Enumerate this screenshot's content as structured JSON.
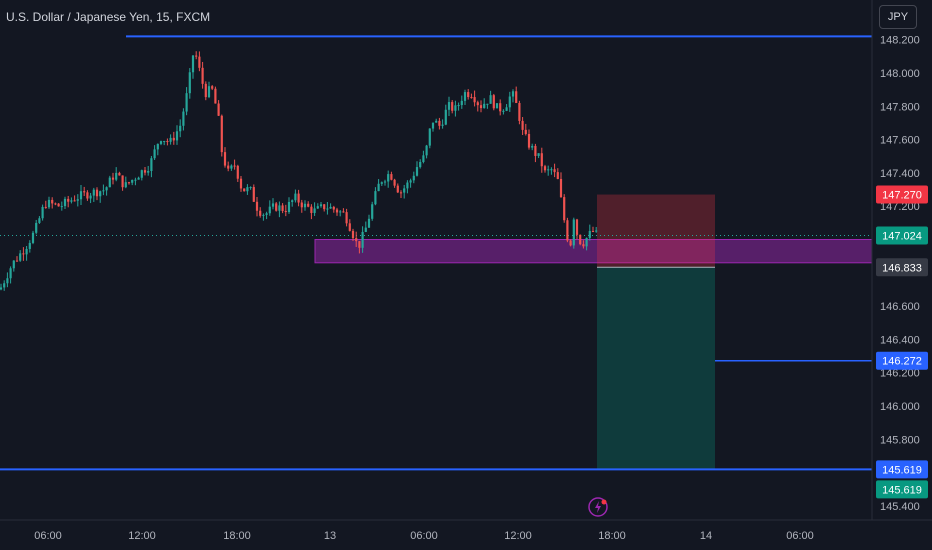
{
  "header": {
    "symbol_title": "U.S. Dollar / Japanese Yen, 15, FXCM",
    "currency_button": "JPY"
  },
  "colors": {
    "background": "#131722",
    "up": "#26a69a",
    "down": "#ef5350",
    "blue_line": "#2962ff",
    "zone": "#9c27b0",
    "stop_zone": "#f23645",
    "target_zone": "#089981"
  },
  "chart_data": {
    "type": "candlestick",
    "ylim": [
      145.3,
      148.3
    ],
    "y_ticks": [
      "148.200",
      "148.000",
      "147.800",
      "147.600",
      "147.400",
      "147.200",
      "146.600",
      "146.400",
      "146.200",
      "146.000",
      "145.800",
      "145.400"
    ],
    "x_ticks": [
      "06:00",
      "12:00",
      "18:00",
      "13",
      "06:00",
      "12:00",
      "18:00",
      "14",
      "06:00"
    ],
    "price_tags": [
      {
        "label": "147.270",
        "value": 147.27,
        "kind": "stop"
      },
      {
        "label": "147.024",
        "value": 147.024,
        "kind": "last"
      },
      {
        "label": "146.833",
        "value": 146.833,
        "kind": "entry"
      },
      {
        "label": "146.272",
        "value": 146.272,
        "kind": "level"
      },
      {
        "label": "145.619",
        "value": 145.619,
        "kind": "level"
      },
      {
        "label": "145.619",
        "value": 145.619,
        "kind": "target"
      }
    ],
    "horizontal_levels": [
      148.22,
      146.272,
      145.619
    ],
    "zone": {
      "top": 147.0,
      "bottom": 146.86
    },
    "position": {
      "entry": 146.833,
      "stop": 147.27,
      "target": 145.619
    },
    "anchors": [
      [
        0,
        146.7
      ],
      [
        12,
        146.85
      ],
      [
        25,
        146.95
      ],
      [
        35,
        147.05
      ],
      [
        45,
        147.22
      ],
      [
        60,
        147.2
      ],
      [
        75,
        147.25
      ],
      [
        90,
        147.28
      ],
      [
        105,
        147.3
      ],
      [
        115,
        147.4
      ],
      [
        125,
        147.32
      ],
      [
        140,
        147.4
      ],
      [
        150,
        147.45
      ],
      [
        160,
        147.62
      ],
      [
        170,
        147.58
      ],
      [
        180,
        147.68
      ],
      [
        188,
        147.9
      ],
      [
        194,
        148.15
      ],
      [
        198,
        148.05
      ],
      [
        205,
        147.88
      ],
      [
        212,
        147.9
      ],
      [
        218,
        147.75
      ],
      [
        222,
        147.52
      ],
      [
        228,
        147.4
      ],
      [
        235,
        147.45
      ],
      [
        242,
        147.3
      ],
      [
        250,
        147.3
      ],
      [
        258,
        147.18
      ],
      [
        265,
        147.15
      ],
      [
        275,
        147.2
      ],
      [
        285,
        147.18
      ],
      [
        295,
        147.25
      ],
      [
        305,
        147.2
      ],
      [
        315,
        147.17
      ],
      [
        325,
        147.2
      ],
      [
        335,
        147.18
      ],
      [
        345,
        147.15
      ],
      [
        352,
        147.05
      ],
      [
        358,
        146.95
      ],
      [
        365,
        147.05
      ],
      [
        372,
        147.2
      ],
      [
        380,
        147.35
      ],
      [
        390,
        147.4
      ],
      [
        400,
        147.28
      ],
      [
        410,
        147.35
      ],
      [
        418,
        147.45
      ],
      [
        425,
        147.5
      ],
      [
        432,
        147.72
      ],
      [
        440,
        147.68
      ],
      [
        448,
        147.8
      ],
      [
        456,
        147.78
      ],
      [
        464,
        147.88
      ],
      [
        472,
        147.88
      ],
      [
        480,
        147.8
      ],
      [
        490,
        147.85
      ],
      [
        498,
        147.78
      ],
      [
        505,
        147.8
      ],
      [
        512,
        147.88
      ],
      [
        518,
        147.78
      ],
      [
        522,
        147.65
      ],
      [
        528,
        147.58
      ],
      [
        535,
        147.52
      ],
      [
        540,
        147.48
      ],
      [
        545,
        147.4
      ],
      [
        552,
        147.42
      ],
      [
        558,
        147.35
      ],
      [
        562,
        147.2
      ],
      [
        566,
        147.05
      ],
      [
        570,
        146.95
      ],
      [
        574,
        147.15
      ],
      [
        578,
        147.0
      ],
      [
        583,
        146.98
      ],
      [
        588,
        147.02
      ],
      [
        593,
        147.05
      ],
      [
        597,
        147.024
      ]
    ]
  },
  "footer": {
    "alert_icon": "lightning-icon"
  }
}
